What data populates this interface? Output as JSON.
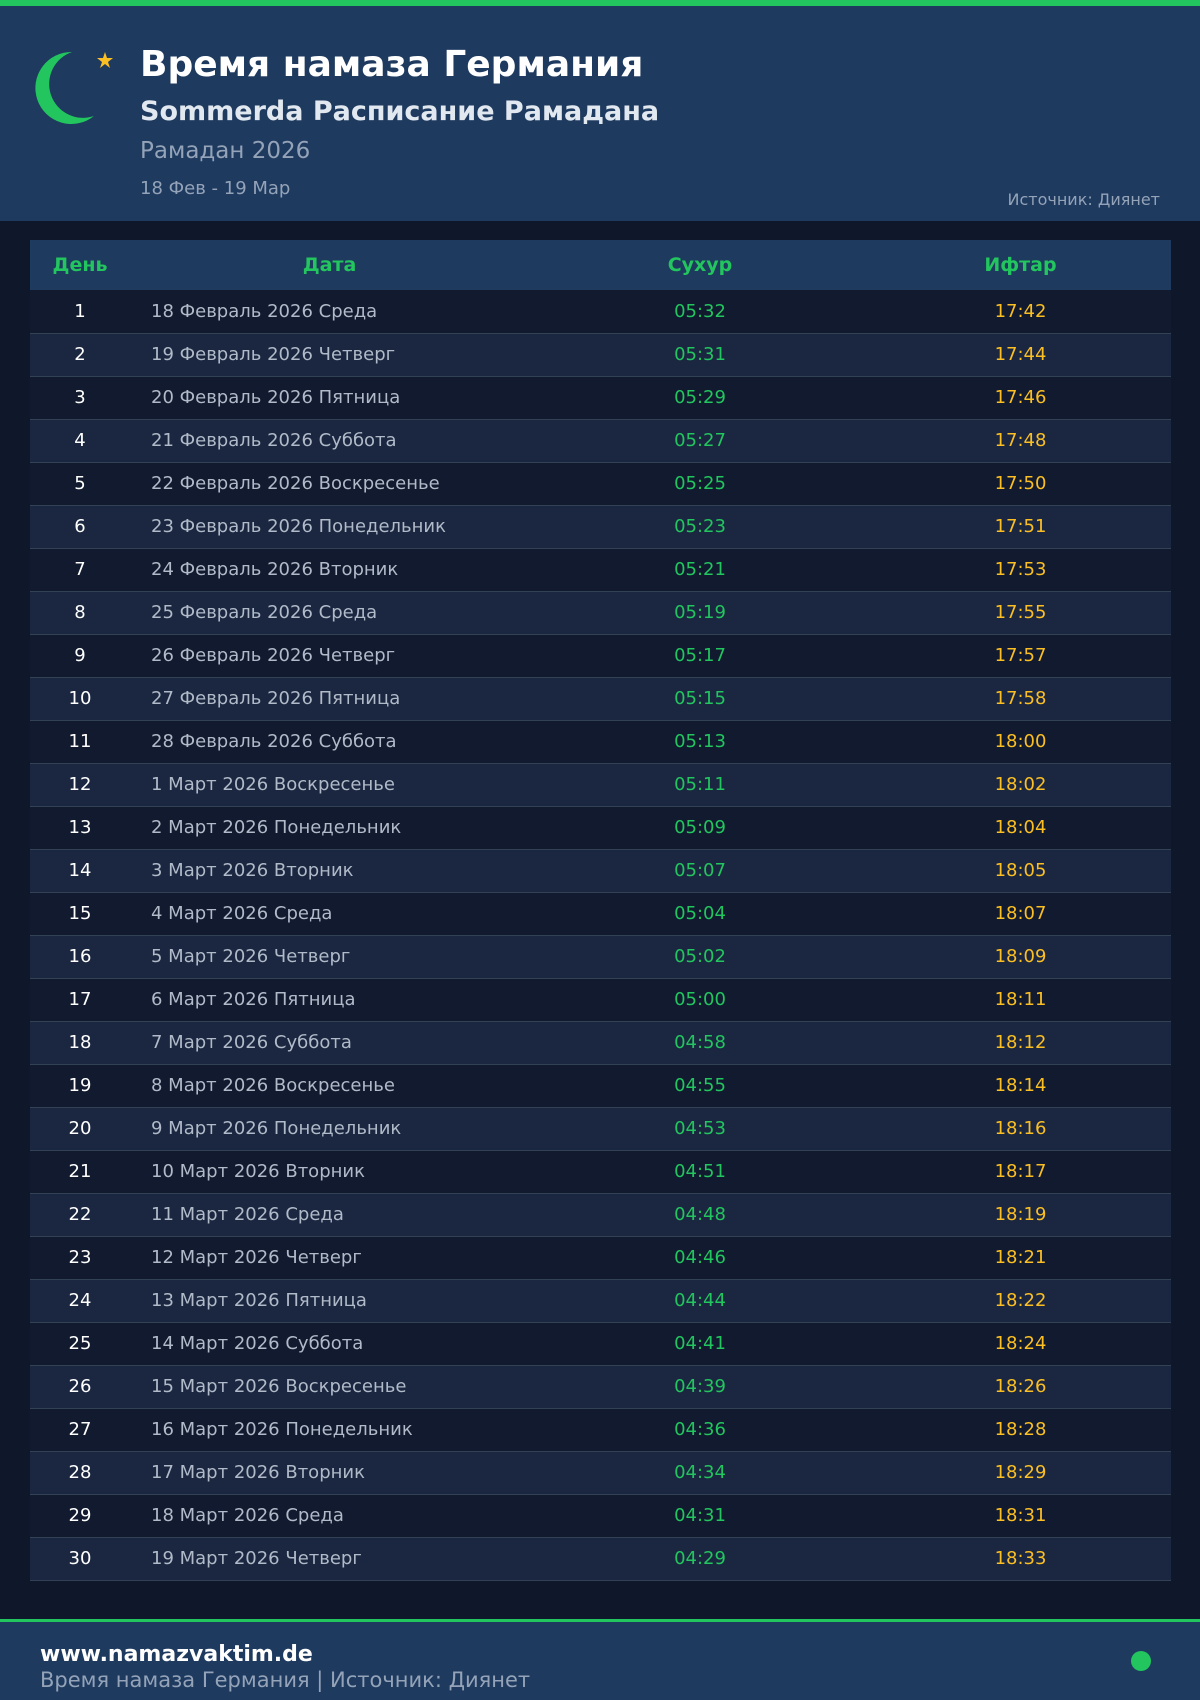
{
  "header": {
    "title": "Время намаза Германия",
    "subtitle": "Sommerda Расписание Рамадана",
    "period": "Рамадан 2026",
    "range": "18 Фев - 19 Мар",
    "source": "Источник: Диянет"
  },
  "table": {
    "columns": [
      "День",
      "Дата",
      "Сухур",
      "Ифтар"
    ],
    "rows": [
      [
        1,
        "18 Февраль 2026 Среда",
        "05:32",
        "17:42"
      ],
      [
        2,
        "19 Февраль 2026 Четверг",
        "05:31",
        "17:44"
      ],
      [
        3,
        "20 Февраль 2026 Пятница",
        "05:29",
        "17:46"
      ],
      [
        4,
        "21 Февраль 2026 Суббота",
        "05:27",
        "17:48"
      ],
      [
        5,
        "22 Февраль 2026 Воскресенье",
        "05:25",
        "17:50"
      ],
      [
        6,
        "23 Февраль 2026 Понедельник",
        "05:23",
        "17:51"
      ],
      [
        7,
        "24 Февраль 2026 Вторник",
        "05:21",
        "17:53"
      ],
      [
        8,
        "25 Февраль 2026 Среда",
        "05:19",
        "17:55"
      ],
      [
        9,
        "26 Февраль 2026 Четверг",
        "05:17",
        "17:57"
      ],
      [
        10,
        "27 Февраль 2026 Пятница",
        "05:15",
        "17:58"
      ],
      [
        11,
        "28 Февраль 2026 Суббота",
        "05:13",
        "18:00"
      ],
      [
        12,
        "1 Март 2026 Воскресенье",
        "05:11",
        "18:02"
      ],
      [
        13,
        "2 Март 2026 Понедельник",
        "05:09",
        "18:04"
      ],
      [
        14,
        "3 Март 2026 Вторник",
        "05:07",
        "18:05"
      ],
      [
        15,
        "4 Март 2026 Среда",
        "05:04",
        "18:07"
      ],
      [
        16,
        "5 Март 2026 Четверг",
        "05:02",
        "18:09"
      ],
      [
        17,
        "6 Март 2026 Пятница",
        "05:00",
        "18:11"
      ],
      [
        18,
        "7 Март 2026 Суббота",
        "04:58",
        "18:12"
      ],
      [
        19,
        "8 Март 2026 Воскресенье",
        "04:55",
        "18:14"
      ],
      [
        20,
        "9 Март 2026 Понедельник",
        "04:53",
        "18:16"
      ],
      [
        21,
        "10 Март 2026 Вторник",
        "04:51",
        "18:17"
      ],
      [
        22,
        "11 Март 2026 Среда",
        "04:48",
        "18:19"
      ],
      [
        23,
        "12 Март 2026 Четверг",
        "04:46",
        "18:21"
      ],
      [
        24,
        "13 Март 2026 Пятница",
        "04:44",
        "18:22"
      ],
      [
        25,
        "14 Март 2026 Суббота",
        "04:41",
        "18:24"
      ],
      [
        26,
        "15 Март 2026 Воскресенье",
        "04:39",
        "18:26"
      ],
      [
        27,
        "16 Март 2026 Понедельник",
        "04:36",
        "18:28"
      ],
      [
        28,
        "17 Март 2026 Вторник",
        "04:34",
        "18:29"
      ],
      [
        29,
        "18 Март 2026 Среда",
        "04:31",
        "18:31"
      ],
      [
        30,
        "19 Март 2026 Четверг",
        "04:29",
        "18:33"
      ]
    ]
  },
  "footer": {
    "site": "www.namazvaktim.de",
    "text": "Время намаза Германия | Источник: Диянет"
  }
}
